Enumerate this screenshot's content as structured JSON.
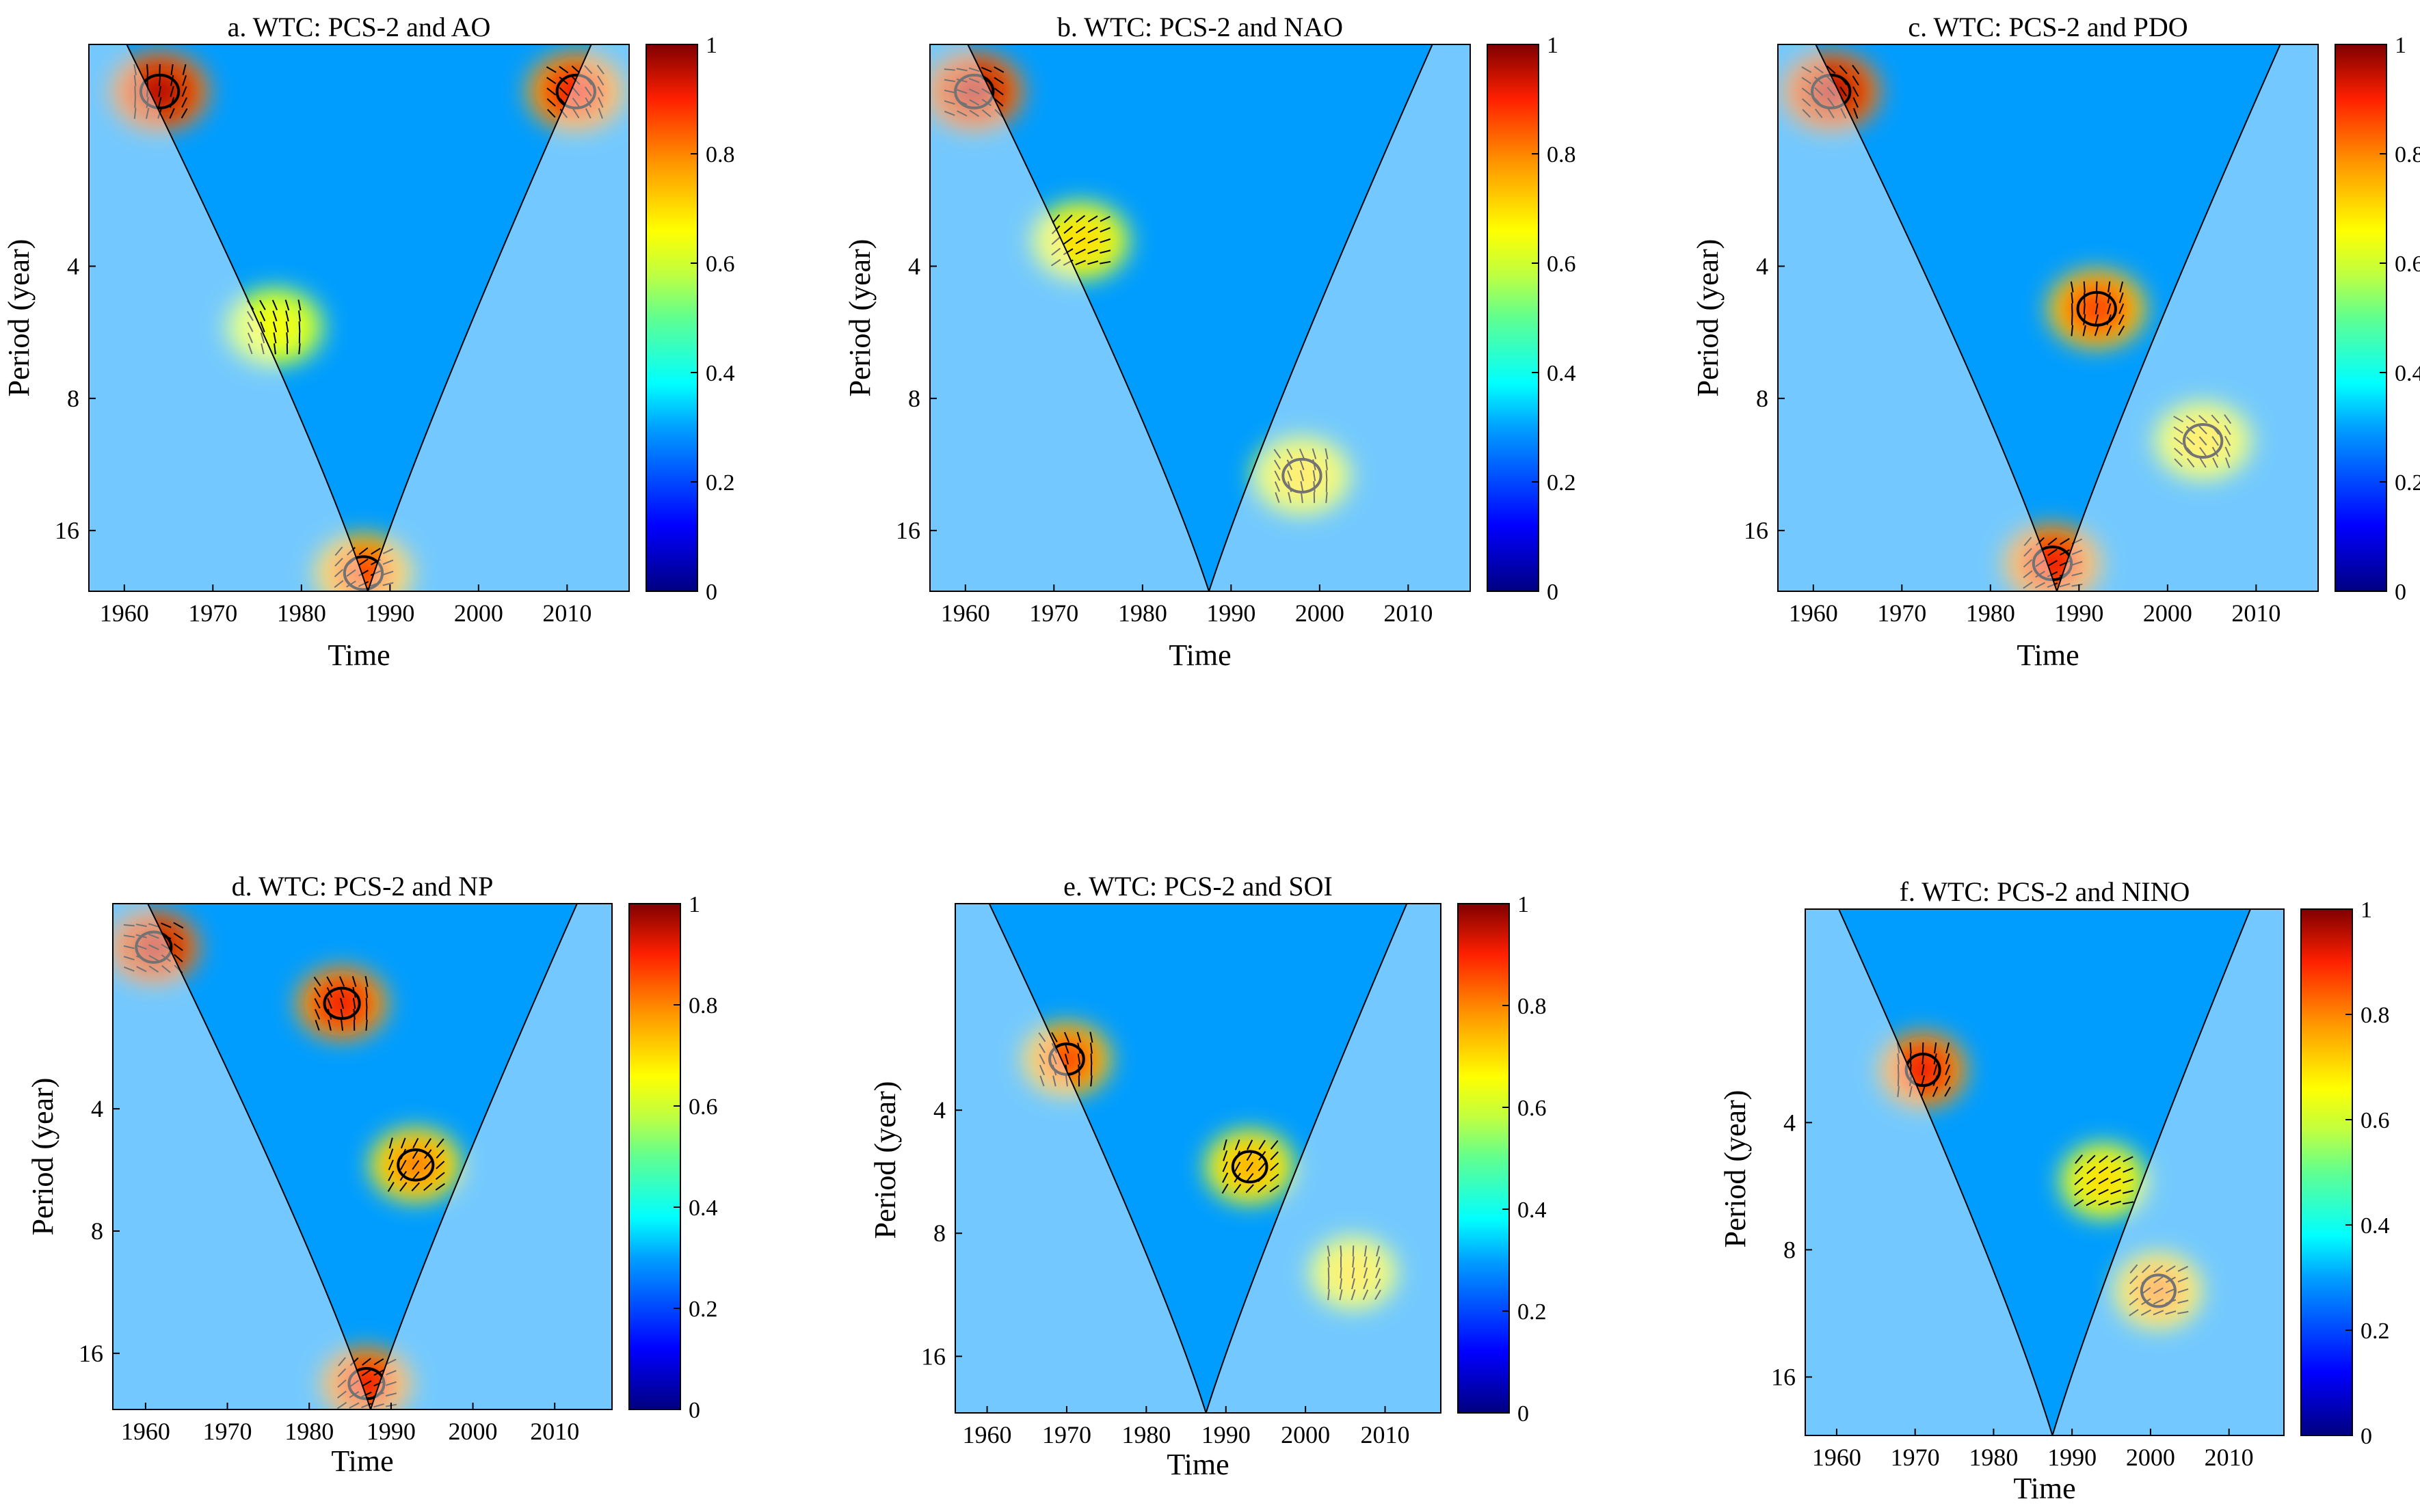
{
  "figure": {
    "panel_count": 6,
    "colormap": "jet",
    "colormap_stops": [
      "#000080",
      "#0000ff",
      "#00a0ff",
      "#00ffff",
      "#60ff90",
      "#c0ff40",
      "#ffff00",
      "#ff9900",
      "#ff2000",
      "#800000"
    ],
    "coi_shade_color": "#ffffff",
    "phase_arrow_color": "#000000",
    "significance_contour_color": "#000000"
  },
  "chart_data": [
    {
      "id": "a",
      "type": "heatmap",
      "title": "a. WTC: PCS-2 and AO",
      "xlabel": "Time",
      "ylabel": "Period (year)",
      "x_range": [
        1956,
        2017
      ],
      "y_range_period_years": [
        1.25,
        22
      ],
      "y_scale": "log2 (reversed)",
      "x_ticks": [
        1960,
        1970,
        1980,
        1990,
        2000,
        2010
      ],
      "y_ticks": [
        4,
        8,
        16
      ],
      "colorbar": {
        "range": [
          0,
          1
        ],
        "ticks": [
          "0",
          "0.2",
          "0.4",
          "0.6",
          "0.8",
          "1"
        ]
      },
      "high_coherence_regions": [
        {
          "x_center": 1964,
          "period_center": 1.6,
          "coherence": 0.95,
          "significant": true
        },
        {
          "x_center": 2011,
          "period_center": 1.6,
          "coherence": 0.9,
          "significant": true
        },
        {
          "x_center": 1977,
          "period_center": 5.5,
          "coherence": 0.65,
          "significant": false
        },
        {
          "x_center": 1987,
          "period_center": 20,
          "coherence": 0.85,
          "significant": true
        }
      ]
    },
    {
      "id": "b",
      "type": "heatmap",
      "title": "b. WTC: PCS-2 and NAO",
      "xlabel": "Time",
      "ylabel": "Period (year)",
      "x_range": [
        1956,
        2017
      ],
      "y_range_period_years": [
        1.25,
        22
      ],
      "y_scale": "log2 (reversed)",
      "x_ticks": [
        1960,
        1970,
        1980,
        1990,
        2000,
        2010
      ],
      "y_ticks": [
        4,
        8,
        16
      ],
      "colorbar": {
        "range": [
          0,
          1
        ],
        "ticks": [
          "0",
          "0.2",
          "0.4",
          "0.6",
          "0.8",
          "1"
        ]
      },
      "high_coherence_regions": [
        {
          "x_center": 1961,
          "period_center": 1.6,
          "coherence": 0.95,
          "significant": true
        },
        {
          "x_center": 1973,
          "period_center": 3.5,
          "coherence": 0.7,
          "significant": false
        },
        {
          "x_center": 1998,
          "period_center": 12,
          "coherence": 0.7,
          "significant": true
        }
      ]
    },
    {
      "id": "c",
      "type": "heatmap",
      "title": "c. WTC: PCS-2 and PDO",
      "xlabel": "Time",
      "ylabel": "Period (year)",
      "x_range": [
        1956,
        2017
      ],
      "y_range_period_years": [
        1.25,
        22
      ],
      "y_scale": "log2 (reversed)",
      "x_ticks": [
        1960,
        1970,
        1980,
        1990,
        2000,
        2010
      ],
      "y_ticks": [
        4,
        8,
        16
      ],
      "colorbar": {
        "range": [
          0,
          1
        ],
        "ticks": [
          "0",
          "0.2",
          "0.4",
          "0.6",
          "0.8",
          "1"
        ]
      },
      "high_coherence_regions": [
        {
          "x_center": 1962,
          "period_center": 1.6,
          "coherence": 0.95,
          "significant": true
        },
        {
          "x_center": 1992,
          "period_center": 5,
          "coherence": 0.85,
          "significant": true
        },
        {
          "x_center": 2004,
          "period_center": 10,
          "coherence": 0.7,
          "significant": true
        },
        {
          "x_center": 1987,
          "period_center": 19,
          "coherence": 0.9,
          "significant": true
        }
      ]
    },
    {
      "id": "d",
      "type": "heatmap",
      "title": "d. WTC: PCS-2 and NP",
      "xlabel": "Time",
      "ylabel": "Period (year)",
      "x_range": [
        1956,
        2017
      ],
      "y_range_period_years": [
        1.25,
        22
      ],
      "y_scale": "log2 (reversed)",
      "x_ticks": [
        1960,
        1970,
        1980,
        1990,
        2000,
        2010
      ],
      "y_ticks": [
        4,
        8,
        16
      ],
      "colorbar": {
        "range": [
          0,
          1
        ],
        "ticks": [
          "0",
          "0.2",
          "0.4",
          "0.6",
          "0.8",
          "1"
        ]
      },
      "high_coherence_regions": [
        {
          "x_center": 1961,
          "period_center": 1.6,
          "coherence": 0.95,
          "significant": true
        },
        {
          "x_center": 1984,
          "period_center": 2.2,
          "coherence": 0.9,
          "significant": true
        },
        {
          "x_center": 1993,
          "period_center": 5.5,
          "coherence": 0.8,
          "significant": true
        },
        {
          "x_center": 1987,
          "period_center": 19,
          "coherence": 0.9,
          "significant": true
        }
      ]
    },
    {
      "id": "e",
      "type": "heatmap",
      "title": "e. WTC: PCS-2 and SOI",
      "xlabel": "Time",
      "ylabel": "Period (year)",
      "x_range": [
        1956,
        2017
      ],
      "y_range_period_years": [
        1.25,
        22
      ],
      "y_scale": "log2 (reversed)",
      "x_ticks": [
        1960,
        1970,
        1980,
        1990,
        2000,
        2010
      ],
      "y_ticks": [
        4,
        8,
        16
      ],
      "colorbar": {
        "range": [
          0,
          1
        ],
        "ticks": [
          "0",
          "0.2",
          "0.4",
          "0.6",
          "0.8",
          "1"
        ]
      },
      "high_coherence_regions": [
        {
          "x_center": 1970,
          "period_center": 3,
          "coherence": 0.85,
          "significant": true
        },
        {
          "x_center": 1993,
          "period_center": 5.5,
          "coherence": 0.75,
          "significant": true
        },
        {
          "x_center": 2006,
          "period_center": 10,
          "coherence": 0.7,
          "significant": false
        }
      ]
    },
    {
      "id": "f",
      "type": "heatmap",
      "title": "f. WTC: PCS-2 and NINO",
      "xlabel": "Time",
      "ylabel": "Period (year)",
      "x_range": [
        1956,
        2017
      ],
      "y_range_period_years": [
        1.25,
        22
      ],
      "y_scale": "log2 (reversed)",
      "x_ticks": [
        1960,
        1970,
        1980,
        1990,
        2000,
        2010
      ],
      "y_ticks": [
        4,
        8,
        16
      ],
      "colorbar": {
        "range": [
          0,
          1
        ],
        "ticks": [
          "0",
          "0.2",
          "0.4",
          "0.6",
          "0.8",
          "1"
        ]
      },
      "high_coherence_regions": [
        {
          "x_center": 1971,
          "period_center": 3,
          "coherence": 0.9,
          "significant": true
        },
        {
          "x_center": 1994,
          "period_center": 5.5,
          "coherence": 0.7,
          "significant": false
        },
        {
          "x_center": 2001,
          "period_center": 10,
          "coherence": 0.8,
          "significant": true
        }
      ]
    }
  ]
}
